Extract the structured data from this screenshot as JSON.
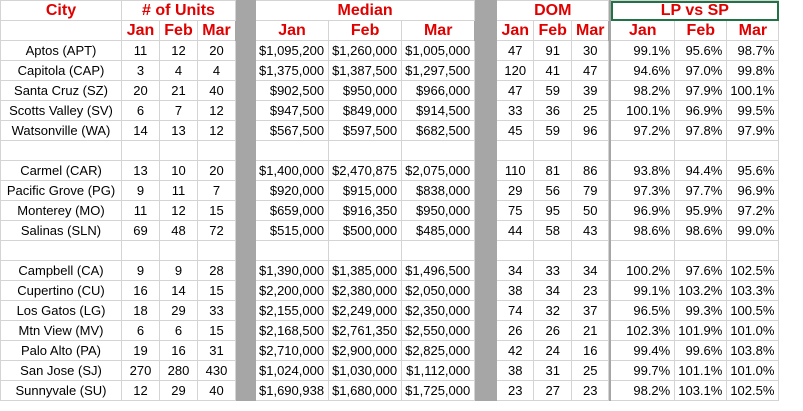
{
  "headers": {
    "city": "City",
    "units": "# of Units",
    "median": "Median",
    "dom": "DOM",
    "lpsp": "LP vs SP",
    "months": [
      "Jan",
      "Feb",
      "Mar"
    ]
  },
  "colors": {
    "header_text": "#e00000",
    "separator": "#a6a6a6",
    "selection": "#217346"
  },
  "groups": [
    [
      {
        "city": "Aptos (APT)",
        "units": [
          "11",
          "12",
          "20"
        ],
        "median": [
          "$1,095,200",
          "$1,260,000",
          "$1,005,000"
        ],
        "dom": [
          "47",
          "91",
          "30"
        ],
        "lpsp": [
          "99.1%",
          "95.6%",
          "98.7%"
        ]
      },
      {
        "city": "Capitola (CAP)",
        "units": [
          "3",
          "4",
          "4"
        ],
        "median": [
          "$1,375,000",
          "$1,387,500",
          "$1,297,500"
        ],
        "dom": [
          "120",
          "41",
          "47"
        ],
        "lpsp": [
          "94.6%",
          "97.0%",
          "99.8%"
        ]
      },
      {
        "city": "Santa Cruz (SZ)",
        "units": [
          "20",
          "21",
          "40"
        ],
        "median": [
          "$902,500",
          "$950,000",
          "$966,000"
        ],
        "dom": [
          "47",
          "59",
          "39"
        ],
        "lpsp": [
          "98.2%",
          "97.9%",
          "100.1%"
        ]
      },
      {
        "city": "Scotts Valley (SV)",
        "units": [
          "6",
          "7",
          "12"
        ],
        "median": [
          "$947,500",
          "$849,000",
          "$914,500"
        ],
        "dom": [
          "33",
          "36",
          "25"
        ],
        "lpsp": [
          "100.1%",
          "96.9%",
          "99.5%"
        ]
      },
      {
        "city": "Watsonville (WA)",
        "units": [
          "14",
          "13",
          "12"
        ],
        "median": [
          "$567,500",
          "$597,500",
          "$682,500"
        ],
        "dom": [
          "45",
          "59",
          "96"
        ],
        "lpsp": [
          "97.2%",
          "97.8%",
          "97.9%"
        ]
      }
    ],
    [
      {
        "city": "Carmel (CAR)",
        "units": [
          "13",
          "10",
          "20"
        ],
        "median": [
          "$1,400,000",
          "$2,470,875",
          "$2,075,000"
        ],
        "dom": [
          "110",
          "81",
          "86"
        ],
        "lpsp": [
          "93.8%",
          "94.4%",
          "95.6%"
        ]
      },
      {
        "city": "Pacific Grove (PG)",
        "units": [
          "9",
          "11",
          "7"
        ],
        "median": [
          "$920,000",
          "$915,000",
          "$838,000"
        ],
        "dom": [
          "29",
          "56",
          "79"
        ],
        "lpsp": [
          "97.3%",
          "97.7%",
          "96.9%"
        ]
      },
      {
        "city": "Monterey (MO)",
        "units": [
          "11",
          "12",
          "15"
        ],
        "median": [
          "$659,000",
          "$916,350",
          "$950,000"
        ],
        "dom": [
          "75",
          "95",
          "50"
        ],
        "lpsp": [
          "96.9%",
          "95.9%",
          "97.2%"
        ]
      },
      {
        "city": "Salinas (SLN)",
        "units": [
          "69",
          "48",
          "72"
        ],
        "median": [
          "$515,000",
          "$500,000",
          "$485,000"
        ],
        "dom": [
          "44",
          "58",
          "43"
        ],
        "lpsp": [
          "98.6%",
          "98.6%",
          "99.0%"
        ]
      }
    ],
    [
      {
        "city": "Campbell (CA)",
        "units": [
          "9",
          "9",
          "28"
        ],
        "median": [
          "$1,390,000",
          "$1,385,000",
          "$1,496,500"
        ],
        "dom": [
          "34",
          "33",
          "34"
        ],
        "lpsp": [
          "100.2%",
          "97.6%",
          "102.5%"
        ]
      },
      {
        "city": "Cupertino (CU)",
        "units": [
          "16",
          "14",
          "15"
        ],
        "median": [
          "$2,200,000",
          "$2,380,000",
          "$2,050,000"
        ],
        "dom": [
          "38",
          "34",
          "23"
        ],
        "lpsp": [
          "99.1%",
          "103.2%",
          "103.3%"
        ]
      },
      {
        "city": "Los Gatos (LG)",
        "units": [
          "18",
          "29",
          "33"
        ],
        "median": [
          "$2,155,000",
          "$2,249,000",
          "$2,350,000"
        ],
        "dom": [
          "74",
          "32",
          "37"
        ],
        "lpsp": [
          "96.5%",
          "99.3%",
          "100.5%"
        ]
      },
      {
        "city": "Mtn View (MV)",
        "units": [
          "6",
          "6",
          "15"
        ],
        "median": [
          "$2,168,500",
          "$2,761,350",
          "$2,550,000"
        ],
        "dom": [
          "26",
          "26",
          "21"
        ],
        "lpsp": [
          "102.3%",
          "101.9%",
          "101.0%"
        ]
      },
      {
        "city": "Palo Alto (PA)",
        "units": [
          "19",
          "16",
          "31"
        ],
        "median": [
          "$2,710,000",
          "$2,900,000",
          "$2,825,000"
        ],
        "dom": [
          "42",
          "24",
          "16"
        ],
        "lpsp": [
          "99.4%",
          "99.6%",
          "103.8%"
        ]
      },
      {
        "city": "San Jose (SJ)",
        "units": [
          "270",
          "280",
          "430"
        ],
        "median": [
          "$1,024,000",
          "$1,030,000",
          "$1,112,000"
        ],
        "dom": [
          "38",
          "31",
          "25"
        ],
        "lpsp": [
          "99.7%",
          "101.1%",
          "101.0%"
        ]
      },
      {
        "city": "Sunnyvale (SU)",
        "units": [
          "12",
          "29",
          "40"
        ],
        "median": [
          "$1,690,938",
          "$1,680,000",
          "$1,725,000"
        ],
        "dom": [
          "23",
          "27",
          "23"
        ],
        "lpsp": [
          "98.2%",
          "103.1%",
          "102.5%"
        ]
      }
    ]
  ]
}
